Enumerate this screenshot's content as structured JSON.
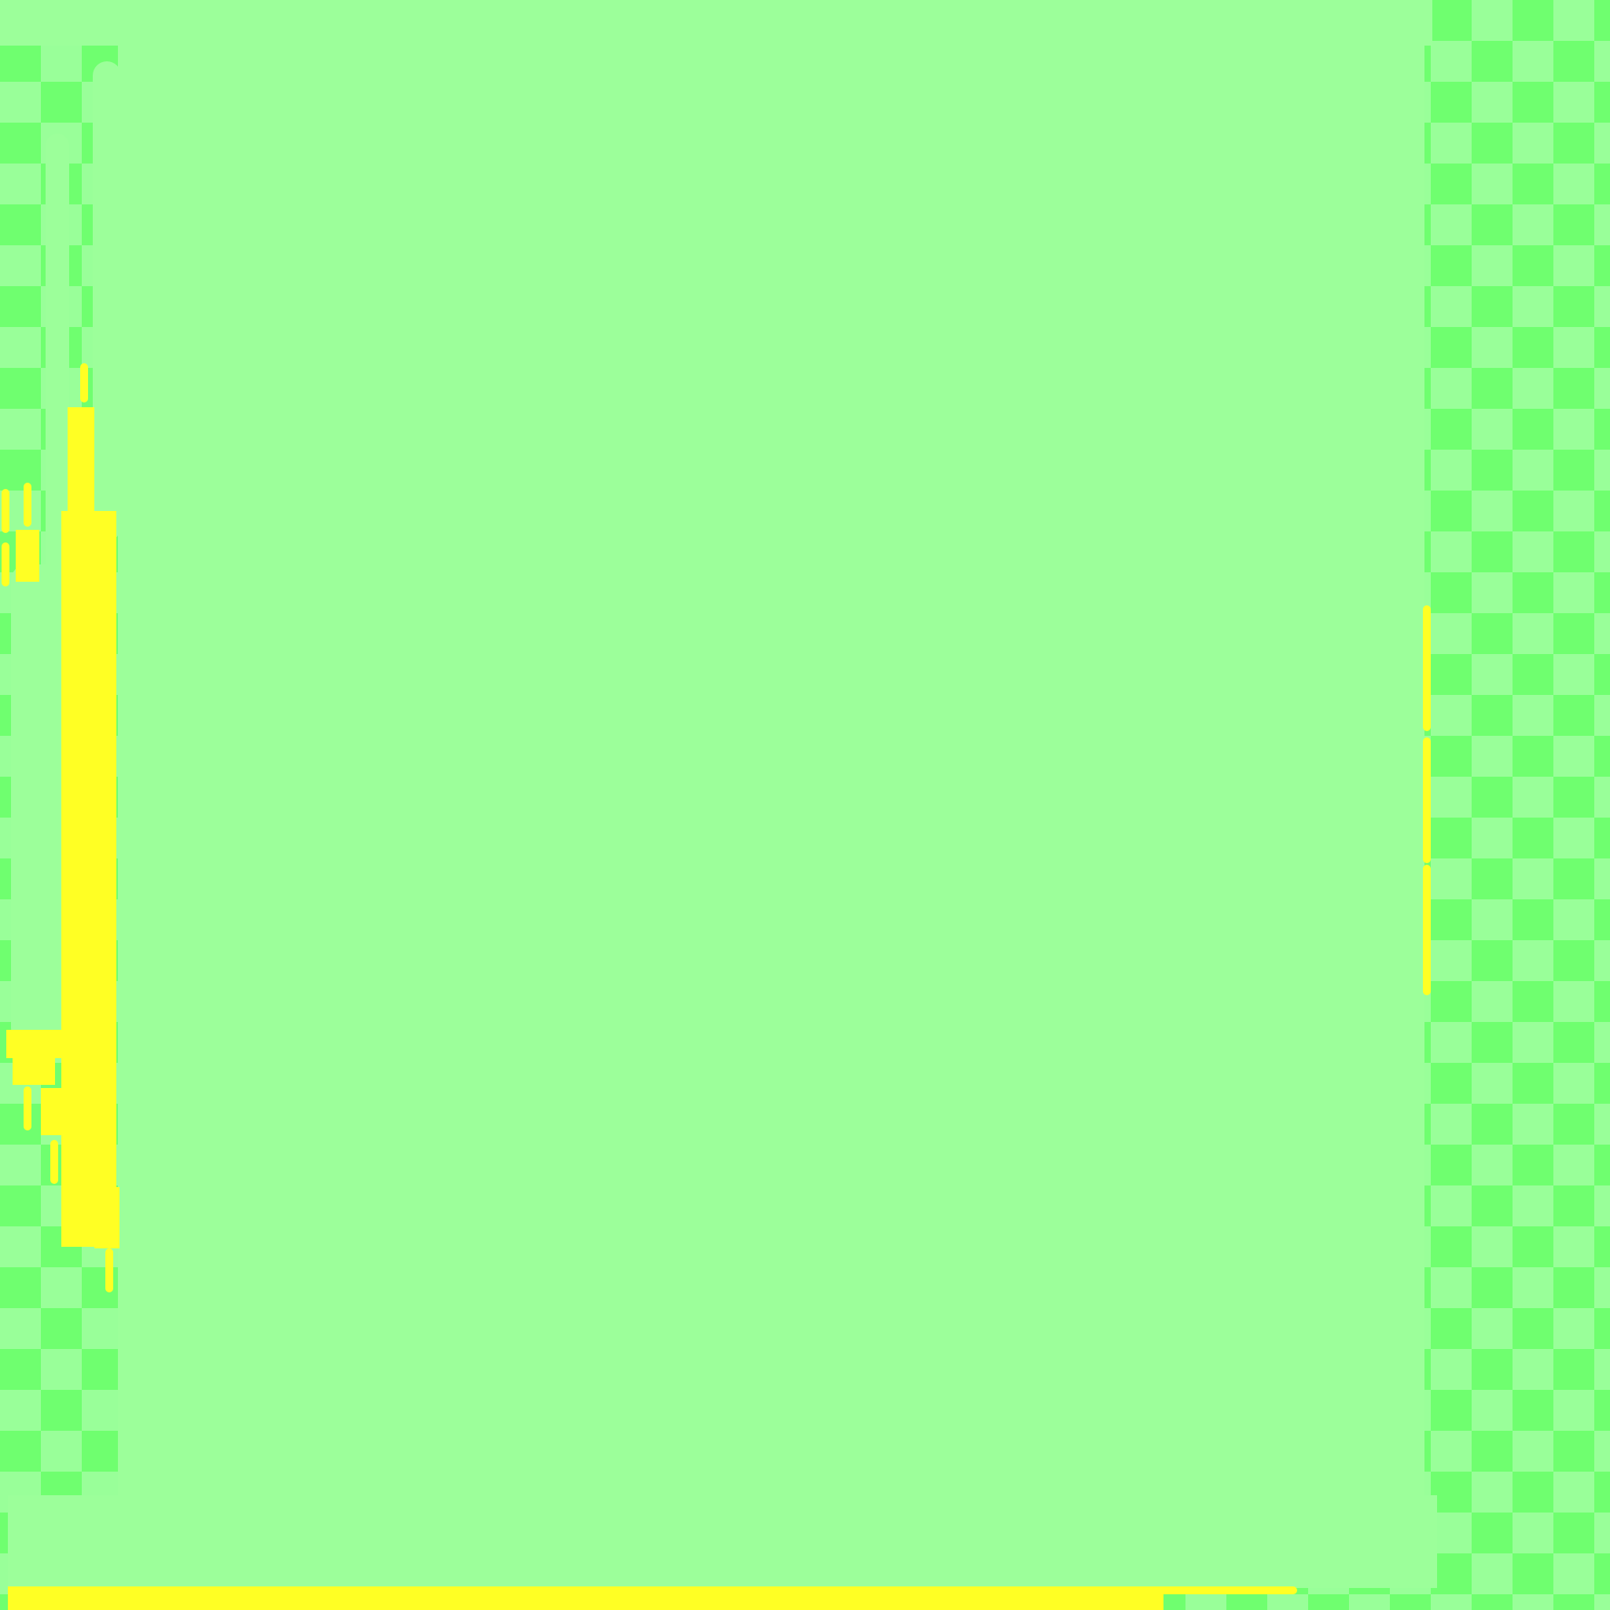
{
  "palette": {
    "background": "#99ff99",
    "checker": "#6fff6f",
    "panel": "#9cff9a",
    "accent": "#ffff24"
  }
}
